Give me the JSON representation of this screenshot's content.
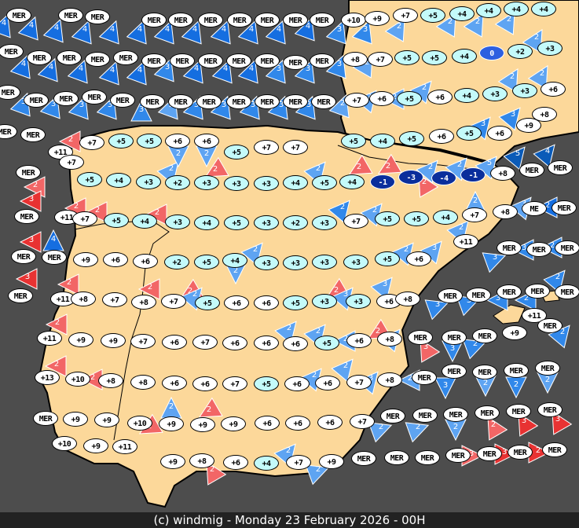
{
  "footer": {
    "caption": "(c) windmig - Monday 23 February 2026 - 00H"
  },
  "colors": {
    "sea": "#4d4d4d",
    "land": "#fcd89a",
    "temp_cold": "#c4fafa",
    "temp_warm": "#ffffff",
    "temp_negative": "#0a2e9c",
    "wind_2_blue": "#5ea4f2",
    "wind_3_blue": "#3188ea",
    "wind_4_blue": "#156ee0",
    "wind_5_blue": "#0b5bb8",
    "wind_2_red": "#f26666",
    "wind_3_red": "#e83232"
  },
  "temperatures": [
    "MER",
    "MER",
    "MER",
    "MER",
    "MER",
    "MER",
    "MER",
    "MER",
    "MER",
    "MER",
    "+10",
    "+9",
    "+7",
    "+5",
    "+4",
    "+4",
    "+4",
    "+4",
    "MER",
    "MER",
    "MER",
    "MER",
    "MER",
    "MER",
    "MER",
    "MER",
    "MER",
    "MER",
    "MER",
    "MER",
    "+8",
    "+7",
    "+5",
    "+5",
    "+4",
    "0",
    "+2",
    "+3",
    "MER",
    "MER",
    "MER",
    "MER",
    "MER",
    "MER",
    "MER",
    "MER",
    "MER",
    "MER",
    "MER",
    "MER",
    "+7",
    "+6",
    "+5",
    "+6",
    "+4",
    "+3",
    "+3",
    "+6",
    "MER",
    "MER",
    "+11",
    "+7",
    "+5",
    "+5",
    "+6",
    "+6",
    "+5",
    "+7",
    "+7",
    "+5",
    "+4",
    "+5",
    "+6",
    "+5",
    "+6",
    "+9",
    "+8",
    "+7",
    "MER",
    "+5",
    "+4",
    "+3",
    "+2",
    "+3",
    "+3",
    "+3",
    "+4",
    "+5",
    "+4",
    "-1",
    "-3",
    "-4",
    "-1",
    "+8",
    "MER",
    "MER",
    "MER",
    "+11",
    "+7",
    "+5",
    "+4",
    "+3",
    "+4",
    "+5",
    "+3",
    "+2",
    "+3",
    "+7",
    "+5",
    "+5",
    "+4",
    "+7",
    "+8",
    "ME",
    "MER",
    "MER",
    "MER",
    "+9",
    "+6",
    "+6",
    "+2",
    "+5",
    "+4",
    "+3",
    "+3",
    "+3",
    "+3",
    "+5",
    "+6",
    "+11",
    "MER",
    "MER",
    "MER",
    "MER",
    "+11",
    "+8",
    "+7",
    "+8",
    "+7",
    "+5",
    "+6",
    "+6",
    "+5",
    "+3",
    "+3",
    "+6",
    "+8",
    "MER",
    "MER",
    "MER",
    "MER",
    "MER",
    "+11",
    "+9",
    "+9",
    "+7",
    "+6",
    "+7",
    "+6",
    "+6",
    "+6",
    "+5",
    "+6",
    "+8",
    "MER",
    "MER",
    "MER",
    "+9",
    "+11",
    "MER",
    "+13",
    "+10",
    "+8",
    "+8",
    "+6",
    "+6",
    "+7",
    "+5",
    "+6",
    "+6",
    "+7",
    "+8",
    "MER",
    "MER",
    "MER",
    "MER",
    "MER",
    "MER",
    "+9",
    "+9",
    "+10",
    "+9",
    "+9",
    "+9",
    "+6",
    "+6",
    "+6",
    "+7",
    "MER",
    "MER",
    "MER",
    "MER",
    "MER",
    "MER",
    "+10",
    "+9",
    "+11",
    "+9",
    "+8",
    "+6",
    "+4",
    "+7",
    "+9",
    "MER",
    "MER",
    "MER",
    "MER",
    "MER",
    "MER",
    "MER"
  ],
  "winds": [
    "4",
    "4",
    "4",
    "4",
    "4",
    "4",
    "4",
    "4",
    "4",
    "4",
    "4",
    "4",
    "3",
    "3",
    "2",
    "2",
    "2",
    "2",
    "4",
    "4",
    "4",
    "4",
    "4",
    "3",
    "4",
    "4",
    "4",
    "3",
    "3",
    "3",
    "2",
    "2",
    "2",
    "2",
    "3",
    "3",
    "3",
    "3",
    "3",
    "2",
    "3",
    "3",
    "3",
    "3",
    "3",
    "2",
    "2",
    "2",
    "2",
    "3",
    "3",
    "2",
    "2",
    "3",
    "4",
    "3",
    "3",
    "2",
    "2",
    "2",
    "2",
    "2",
    "2",
    "2",
    "2",
    "2",
    "2",
    "2",
    "2",
    "2",
    "5",
    "5",
    "4",
    "2",
    "3",
    "2",
    "2",
    "2",
    "2",
    "2",
    "2",
    "2",
    "3",
    "3",
    "3",
    "2",
    "2",
    "2",
    "2",
    "2",
    "2",
    "3",
    "3",
    "3",
    "3",
    "3",
    "2",
    "2",
    "2",
    "2",
    "2",
    "2",
    "2",
    "3",
    "3",
    "3",
    "2",
    "2",
    "2",
    "2",
    "2",
    "2",
    "3",
    "2",
    "3",
    "2",
    "2",
    "2",
    "2",
    "2",
    "2",
    "2",
    "2",
    "2",
    "2",
    "3",
    "3",
    "2",
    "2",
    "2",
    "3",
    "3",
    "2"
  ]
}
